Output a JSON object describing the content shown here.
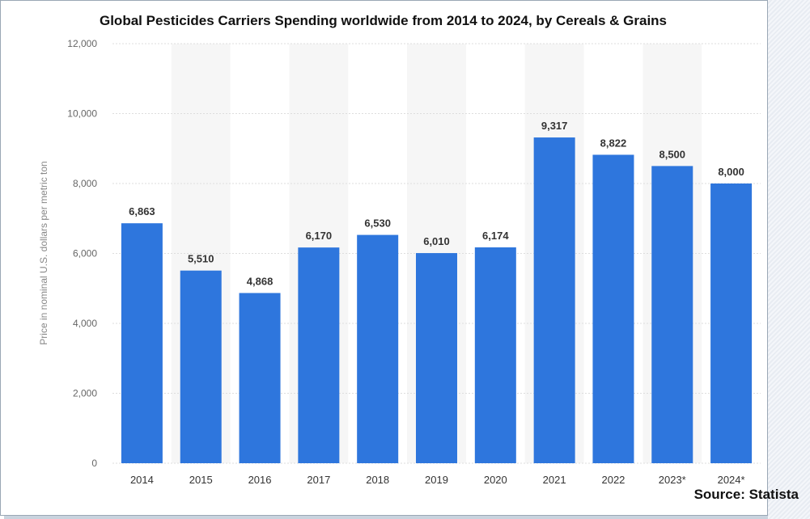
{
  "title": "Global Pesticides Carriers Spending worldwide from 2014 to 2024, by Cereals & Grains",
  "source": "Source: Statista",
  "chart_data": {
    "type": "bar",
    "categories": [
      "2014",
      "2015",
      "2016",
      "2017",
      "2018",
      "2019",
      "2020",
      "2021",
      "2022",
      "2023*",
      "2024*"
    ],
    "values": [
      6863,
      5510,
      4868,
      6170,
      6530,
      6010,
      6174,
      9317,
      8822,
      8500,
      8000
    ],
    "data_labels": [
      "6,863",
      "5,510",
      "4,868",
      "6,170",
      "6,530",
      "6,010",
      "6,174",
      "9,317",
      "8,822",
      "8,500",
      "8,000"
    ],
    "ylabel": "Price in nominal U.S. dollars per metric ton",
    "xlabel": "",
    "ylim": [
      0,
      12000
    ],
    "yticks": [
      0,
      2000,
      4000,
      6000,
      8000,
      10000,
      12000
    ],
    "ytick_labels": [
      "0",
      "2,000",
      "4,000",
      "6,000",
      "8,000",
      "10,000",
      "12,000"
    ],
    "bar_color": "#2e76dd",
    "grid": true
  }
}
